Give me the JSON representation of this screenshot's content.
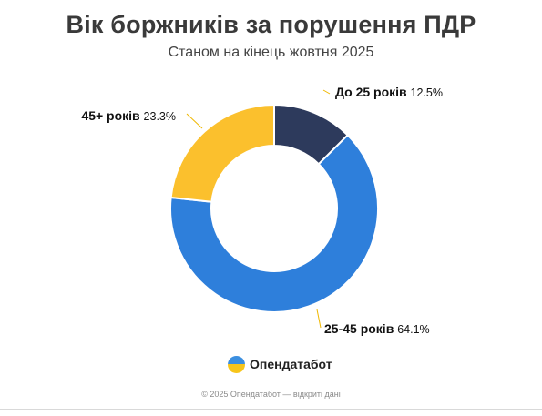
{
  "chart_data": {
    "type": "pie",
    "title": "Вік боржників за порушення ПДР",
    "subtitle": "Станом на кінець жовтня 2025",
    "slices": [
      {
        "label": "До 25 років",
        "value": 12.5,
        "display": "12.5%",
        "color": "#2d3a5c"
      },
      {
        "label": "25-45 років",
        "value": 64.1,
        "display": "64.1%",
        "color": "#2e7fdb"
      },
      {
        "label": "45+ років",
        "value": 23.3,
        "display": "23.3%",
        "color": "#fbc02d"
      }
    ],
    "donut": true,
    "leader_color": "#f0b800"
  },
  "brand": {
    "name": "Опендатабот",
    "logo_icon": "opendatabot-logo-icon"
  },
  "footer": {
    "text": "© 2025 Опендатабот — відкриті дані"
  }
}
